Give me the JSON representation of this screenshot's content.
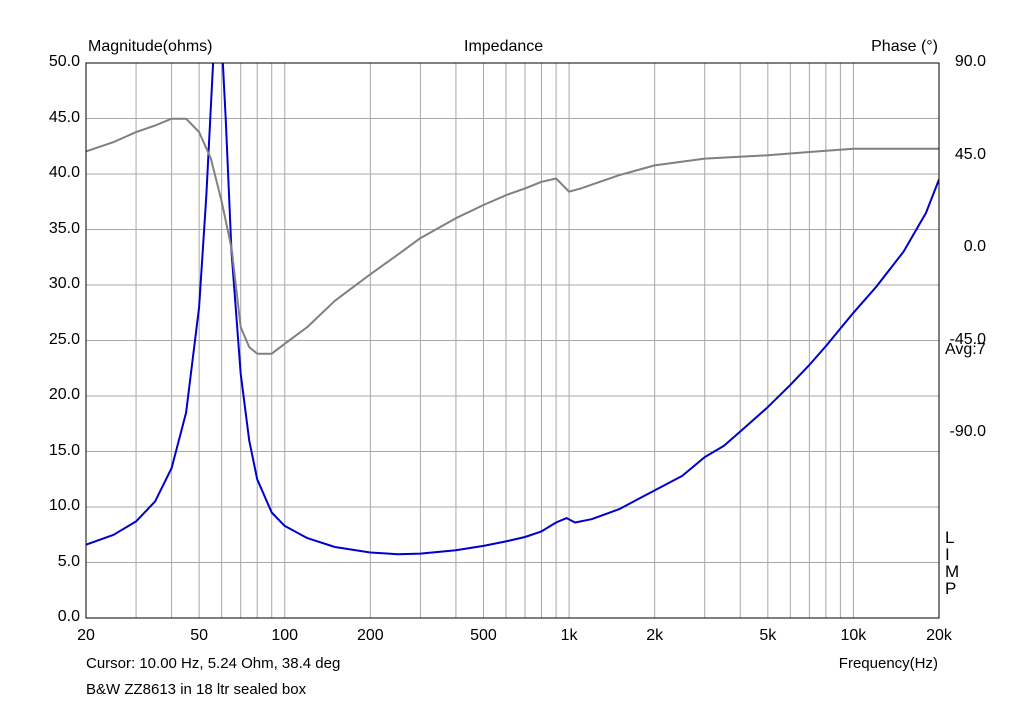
{
  "chart_data": {
    "type": "line",
    "title": "Impedance",
    "left_axis_label": "Magnitude(ohms)",
    "right_axis_label": "Phase (°)",
    "xlabel": "Frequency(Hz)",
    "xscale": "log",
    "xlim": [
      20,
      20000
    ],
    "ylim": [
      0,
      50
    ],
    "y2lim": [
      -180,
      90
    ],
    "grid": true,
    "y_ticks": [
      "50.0",
      "45.0",
      "40.0",
      "35.0",
      "30.0",
      "25.0",
      "20.0",
      "15.0",
      "10.0",
      "5.0",
      "0.0"
    ],
    "y2_ticks": [
      "90.0",
      "45.0",
      "0.0",
      "-45.0",
      "-90.0"
    ],
    "x_tick_labels": [
      {
        "value": 20,
        "label": "20"
      },
      {
        "value": 50,
        "label": "50"
      },
      {
        "value": 100,
        "label": "100"
      },
      {
        "value": 200,
        "label": "200"
      },
      {
        "value": 500,
        "label": "500"
      },
      {
        "value": 1000,
        "label": "1k"
      },
      {
        "value": 2000,
        "label": "2k"
      },
      {
        "value": 5000,
        "label": "5k"
      },
      {
        "value": 10000,
        "label": "10k"
      },
      {
        "value": 20000,
        "label": "20k"
      }
    ],
    "avg_label": "Avg:7",
    "side_letters": [
      "L",
      "I",
      "M",
      "P"
    ],
    "cursor_text": "Cursor: 10.00 Hz, 5.24 Ohm, 38.4 deg",
    "caption": "B&W ZZ8613 in 18 ltr sealed box",
    "series": [
      {
        "axis": "left",
        "color": "#0000cc",
        "points": [
          [
            20,
            6.6
          ],
          [
            25,
            7.5
          ],
          [
            30,
            8.7
          ],
          [
            35,
            10.5
          ],
          [
            40,
            13.5
          ],
          [
            45,
            18.5
          ],
          [
            50,
            28
          ],
          [
            53,
            38
          ],
          [
            56,
            50
          ],
          [
            58,
            55
          ],
          [
            60,
            52
          ],
          [
            62,
            45
          ],
          [
            65,
            33
          ],
          [
            70,
            22
          ],
          [
            75,
            16
          ],
          [
            80,
            12.5
          ],
          [
            90,
            9.5
          ],
          [
            100,
            8.3
          ],
          [
            120,
            7.2
          ],
          [
            150,
            6.4
          ],
          [
            200,
            5.9
          ],
          [
            250,
            5.75
          ],
          [
            300,
            5.8
          ],
          [
            400,
            6.1
          ],
          [
            500,
            6.5
          ],
          [
            600,
            6.9
          ],
          [
            700,
            7.3
          ],
          [
            800,
            7.8
          ],
          [
            900,
            8.6
          ],
          [
            980,
            9.0
          ],
          [
            1050,
            8.6
          ],
          [
            1200,
            8.9
          ],
          [
            1500,
            9.8
          ],
          [
            2000,
            11.5
          ],
          [
            2500,
            12.8
          ],
          [
            3000,
            14.5
          ],
          [
            3500,
            15.5
          ],
          [
            4000,
            16.8
          ],
          [
            5000,
            19
          ],
          [
            6000,
            21
          ],
          [
            7000,
            22.8
          ],
          [
            8000,
            24.5
          ],
          [
            10000,
            27.5
          ],
          [
            12000,
            29.8
          ],
          [
            15000,
            33
          ],
          [
            18000,
            36.5
          ],
          [
            20000,
            39.5
          ]
        ]
      },
      {
        "axis": "right",
        "color": "#808080",
        "points": [
          [
            20,
            47.0
          ],
          [
            25,
            51.5
          ],
          [
            30,
            56.4
          ],
          [
            35,
            59.6
          ],
          [
            40,
            62.9
          ],
          [
            45,
            62.9
          ],
          [
            50,
            56.4
          ],
          [
            55,
            43.5
          ],
          [
            60,
            22.5
          ],
          [
            65,
            0
          ],
          [
            70,
            -38.5
          ],
          [
            75,
            -48.2
          ],
          [
            80,
            -51.4
          ],
          [
            90,
            -51.4
          ],
          [
            100,
            -46.6
          ],
          [
            120,
            -38.5
          ],
          [
            150,
            -25.7
          ],
          [
            200,
            -12.8
          ],
          [
            250,
            -3.2
          ],
          [
            300,
            4.8
          ],
          [
            400,
            14.5
          ],
          [
            500,
            20.9
          ],
          [
            600,
            25.7
          ],
          [
            700,
            29.0
          ],
          [
            800,
            32.2
          ],
          [
            900,
            33.8
          ],
          [
            1000,
            27.4
          ],
          [
            1100,
            29.0
          ],
          [
            1500,
            35.4
          ],
          [
            2000,
            40.2
          ],
          [
            3000,
            43.5
          ],
          [
            5000,
            45.1
          ],
          [
            7000,
            46.7
          ],
          [
            10000,
            48.3
          ],
          [
            20000,
            48.3
          ]
        ]
      }
    ]
  }
}
